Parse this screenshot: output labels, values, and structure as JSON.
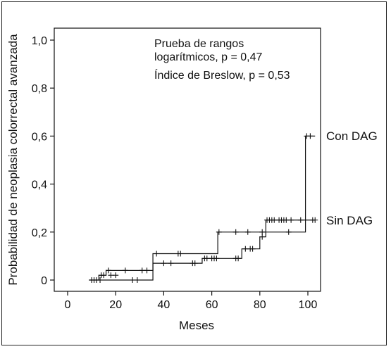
{
  "chart_data": {
    "type": "line",
    "subtype": "kaplan-meier step curves",
    "xlabel": "Meses",
    "ylabel": "Probabilidad de neoplasia colorrectal avanzada",
    "xlim": [
      -5,
      105
    ],
    "ylim": [
      -0.05,
      1.05
    ],
    "x_ticks": [
      0,
      20,
      40,
      60,
      80,
      100
    ],
    "x_tick_labels": [
      "0",
      "20",
      "40",
      "60",
      "80",
      "100"
    ],
    "y_ticks": [
      0,
      0.2,
      0.4,
      0.6,
      0.8,
      1.0
    ],
    "y_tick_labels": [
      "0",
      "0,2",
      "0,4",
      "0,6",
      "0,8",
      "1,0"
    ],
    "grid": false,
    "annotations": [
      "Prueba de rangos",
      "logarítmicos, p = 0,47",
      "Índice de Breslow, p = 0,53"
    ],
    "series": [
      {
        "name": "Con DAG",
        "steps": [
          [
            9,
            0
          ],
          [
            35.5,
            0.11
          ],
          [
            62.5,
            0.2
          ],
          [
            99,
            0.6
          ],
          [
            103,
            0.6
          ]
        ],
        "censored": [
          [
            63,
            0.2
          ],
          [
            70,
            0.2
          ],
          [
            75,
            0.2
          ],
          [
            81,
            0.2
          ],
          [
            92,
            0.2
          ],
          [
            99.5,
            0.6
          ],
          [
            101,
            0.6
          ]
        ]
      },
      {
        "name": "Sin DAG",
        "steps": [
          [
            9,
            0
          ],
          [
            13,
            0.02
          ],
          [
            16,
            0.04
          ],
          [
            35.5,
            0.07
          ],
          [
            56,
            0.09
          ],
          [
            72.5,
            0.13
          ],
          [
            80,
            0.18
          ],
          [
            82.5,
            0.25
          ],
          [
            103,
            0.25
          ]
        ],
        "censored": [
          [
            10,
            0
          ],
          [
            11,
            0
          ],
          [
            12,
            0
          ],
          [
            13.5,
            0
          ],
          [
            14,
            0.02
          ],
          [
            15,
            0.02
          ],
          [
            17,
            0.04
          ],
          [
            18,
            0.02
          ],
          [
            20,
            0.02
          ],
          [
            24,
            0.04
          ],
          [
            27,
            0
          ],
          [
            29,
            0
          ],
          [
            31,
            0.04
          ],
          [
            33,
            0.04
          ],
          [
            37,
            0.11
          ],
          [
            40,
            0.07
          ],
          [
            43,
            0.07
          ],
          [
            46,
            0.11
          ],
          [
            47,
            0.11
          ],
          [
            52,
            0.07
          ],
          [
            53,
            0.07
          ],
          [
            57,
            0.09
          ],
          [
            58,
            0.09
          ],
          [
            60,
            0.09
          ],
          [
            61,
            0.09
          ],
          [
            62,
            0.09
          ],
          [
            70,
            0.09
          ],
          [
            71,
            0.09
          ],
          [
            74,
            0.13
          ],
          [
            76,
            0.13
          ],
          [
            77,
            0.13
          ],
          [
            81,
            0.18
          ],
          [
            83,
            0.25
          ],
          [
            84,
            0.25
          ],
          [
            85,
            0.25
          ],
          [
            86,
            0.25
          ],
          [
            88,
            0.25
          ],
          [
            89,
            0.25
          ],
          [
            90,
            0.25
          ],
          [
            91,
            0.25
          ],
          [
            93,
            0.25
          ],
          [
            97,
            0.25
          ],
          [
            102,
            0.25
          ],
          [
            103,
            0.25
          ]
        ]
      }
    ]
  }
}
